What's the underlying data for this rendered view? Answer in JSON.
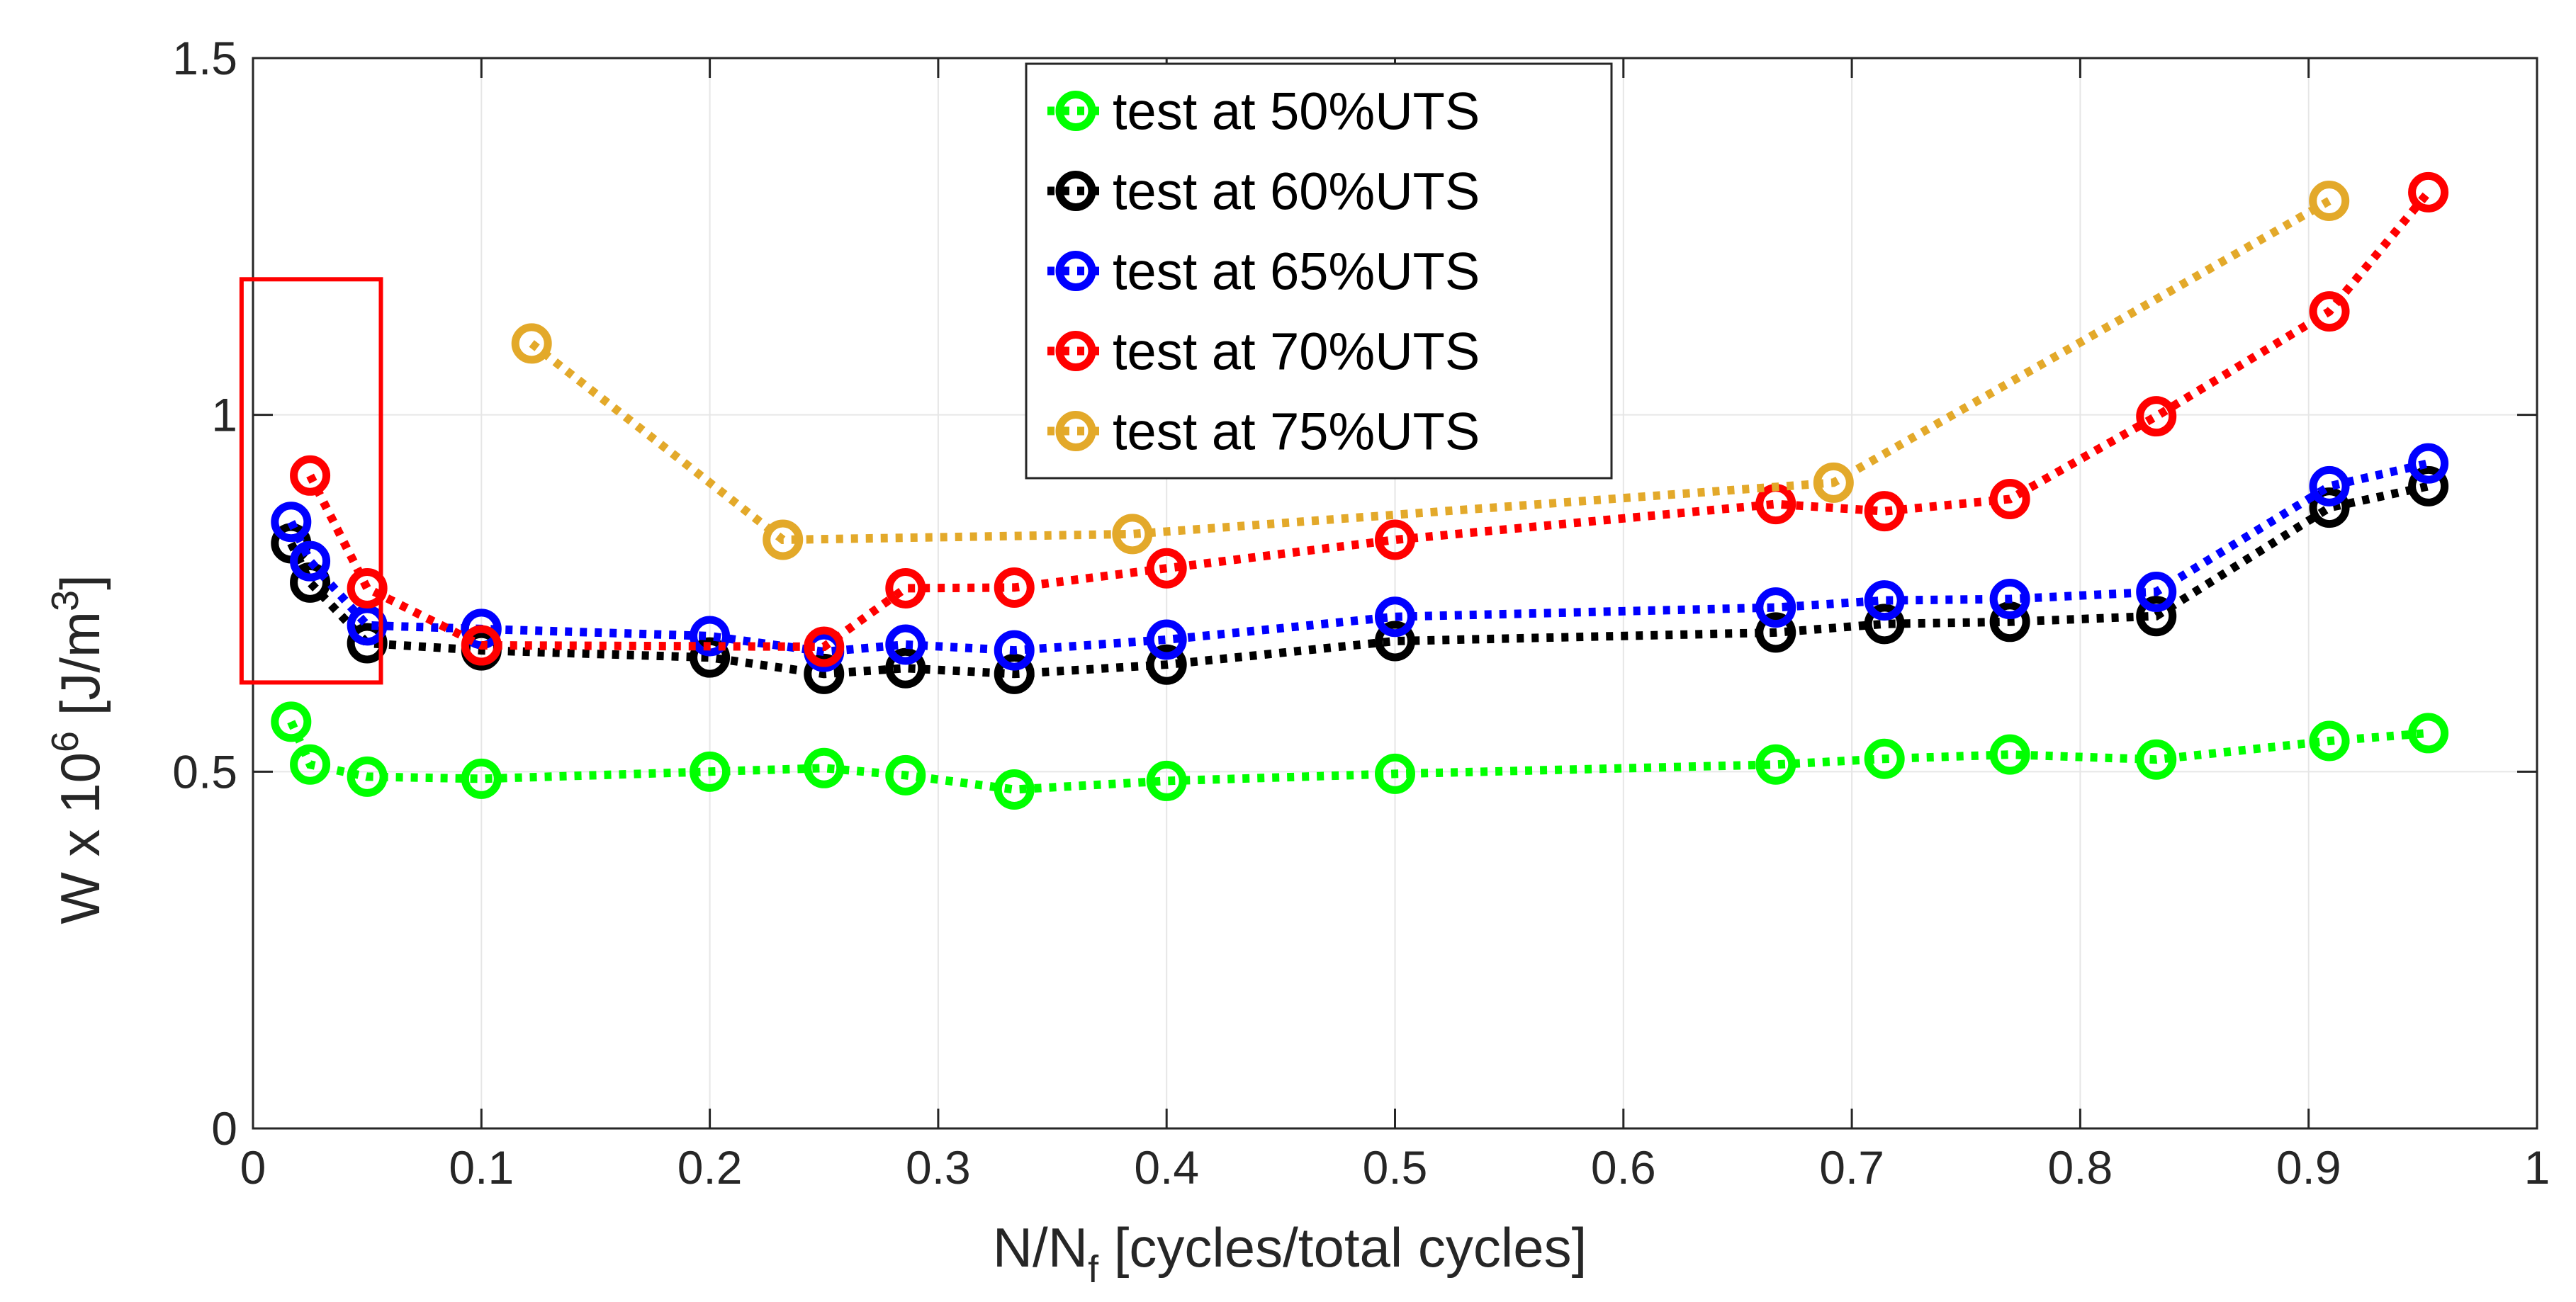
{
  "chart_data": {
    "type": "line",
    "title": "",
    "xlabel_main": "N/N",
    "xlabel_sub": "f",
    "xlabel_rest": " [cycles/total cycles]",
    "ylabel_pre": "W x 10",
    "ylabel_exp": "6",
    "ylabel_mid": " [J/m",
    "ylabel_exp2": "3",
    "ylabel_end": "]",
    "xlim": [
      0,
      1
    ],
    "ylim": [
      0,
      1.5
    ],
    "xticks": [
      0,
      0.1,
      0.2,
      0.3,
      0.4,
      0.5,
      0.6,
      0.7,
      0.8,
      0.9,
      1
    ],
    "xtick_labels": [
      "0",
      "0.1",
      "0.2",
      "0.3",
      "0.4",
      "0.5",
      "0.6",
      "0.7",
      "0.8",
      "0.9",
      "1"
    ],
    "yticks": [
      0,
      0.5,
      1,
      1.5
    ],
    "ytick_labels": [
      "0",
      "0.5",
      "1",
      "1.5"
    ],
    "grid": true,
    "legend_position": "top-center",
    "highlight_box": {
      "x_range": [
        -0.005,
        0.056
      ],
      "y_range": [
        0.625,
        1.19
      ],
      "color": "#ff0000"
    },
    "series": [
      {
        "name": "test at 50%UTS",
        "color": "#00ff00",
        "x": [
          0.0167,
          0.025,
          0.05,
          0.1,
          0.2,
          0.25,
          0.2857,
          0.3333,
          0.4,
          0.5,
          0.6667,
          0.7143,
          0.7692,
          0.8333,
          0.9091,
          0.9524
        ],
        "y": [
          0.57,
          0.51,
          0.493,
          0.49,
          0.5,
          0.505,
          0.495,
          0.475,
          0.487,
          0.497,
          0.51,
          0.518,
          0.524,
          0.517,
          0.543,
          0.554
        ]
      },
      {
        "name": "test at 60%UTS",
        "color": "#000000",
        "x": [
          0.0167,
          0.025,
          0.05,
          0.1,
          0.2,
          0.25,
          0.2857,
          0.3333,
          0.4,
          0.5,
          0.6667,
          0.7143,
          0.7692,
          0.8333,
          0.9091,
          0.9524
        ],
        "y": [
          0.82,
          0.765,
          0.68,
          0.67,
          0.66,
          0.637,
          0.645,
          0.637,
          0.65,
          0.683,
          0.695,
          0.707,
          0.71,
          0.718,
          0.87,
          0.9
        ]
      },
      {
        "name": "test at 65%UTS",
        "color": "#0000ff",
        "x": [
          0.0167,
          0.025,
          0.05,
          0.1,
          0.2,
          0.25,
          0.2857,
          0.3333,
          0.4,
          0.5,
          0.6667,
          0.7143,
          0.7692,
          0.8333,
          0.9091,
          0.9524
        ],
        "y": [
          0.85,
          0.795,
          0.705,
          0.7,
          0.69,
          0.668,
          0.678,
          0.67,
          0.685,
          0.717,
          0.73,
          0.74,
          0.742,
          0.752,
          0.9,
          0.932
        ]
      },
      {
        "name": "test at 70%UTS",
        "color": "#ff0000",
        "x": [
          0.025,
          0.05,
          0.1,
          0.25,
          0.2857,
          0.3333,
          0.4,
          0.5,
          0.6667,
          0.7143,
          0.7692,
          0.8333,
          0.9091,
          0.9524
        ],
        "y": [
          0.915,
          0.757,
          0.677,
          0.675,
          0.757,
          0.758,
          0.785,
          0.825,
          0.875,
          0.865,
          0.882,
          0.998,
          1.145,
          1.312
        ]
      },
      {
        "name": "test at 75%UTS",
        "color": "#e3a92a",
        "x": [
          0.122,
          0.232,
          0.385,
          0.692,
          0.909
        ],
        "y": [
          1.1,
          0.825,
          0.833,
          0.905,
          1.3
        ]
      }
    ]
  }
}
